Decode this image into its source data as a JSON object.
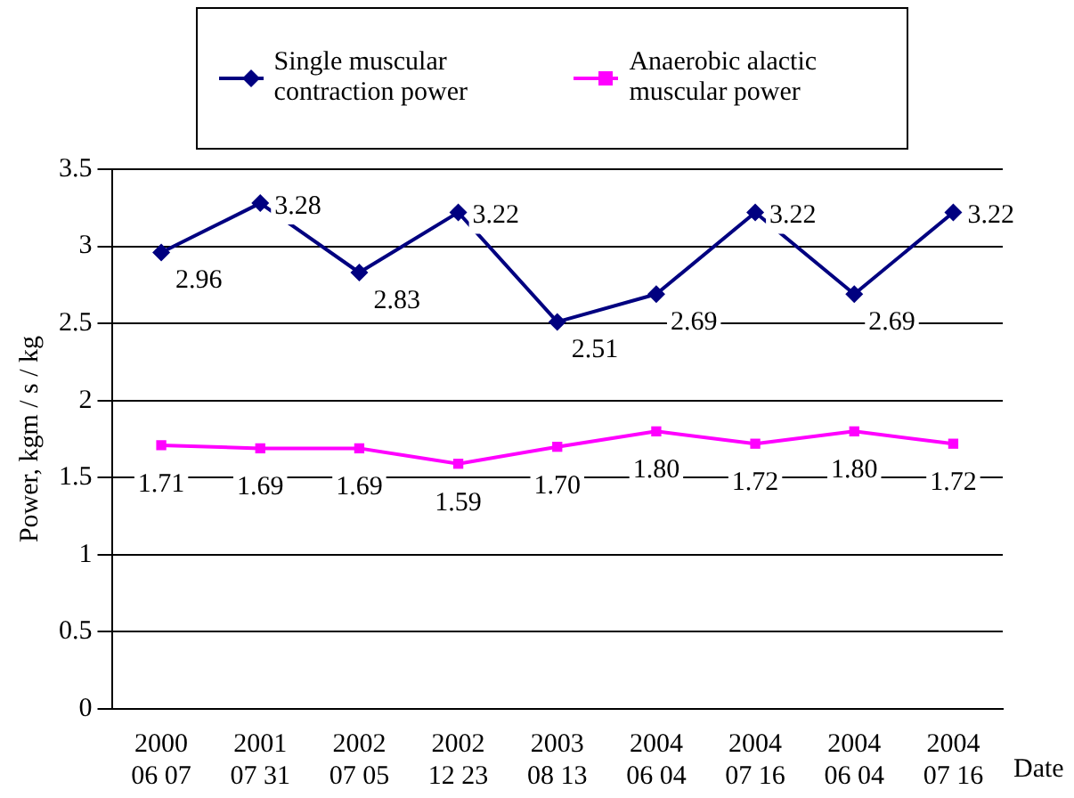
{
  "chart_data": {
    "type": "line",
    "xlabel": "Date",
    "ylabel": "Power, kgm / s / kg",
    "categories": [
      "2000\n06 07",
      "2001\n07 31",
      "2002\n07 05",
      "2002\n12 23",
      "2003\n08 13",
      "2004\n06 04",
      "2004\n07 16",
      "2004\n06 04",
      "2004\n07 16"
    ],
    "series": [
      {
        "name": "Single muscular contraction power",
        "color": "#000080",
        "marker": "diamond",
        "values": [
          2.96,
          3.28,
          2.83,
          3.22,
          2.51,
          2.69,
          3.22,
          2.69,
          3.22
        ],
        "value_labels": [
          "2.96",
          "3.28",
          "2.83",
          "3.22",
          "2.51",
          "2.69",
          "3.22",
          "2.69",
          "3.22"
        ]
      },
      {
        "name": "Anaerobic alactic muscular power",
        "color": "#ff00ff",
        "marker": "square",
        "values": [
          1.71,
          1.69,
          1.69,
          1.59,
          1.7,
          1.8,
          1.72,
          1.8,
          1.72
        ],
        "value_labels": [
          "1.71",
          "1.69",
          "1.69",
          "1.59",
          "1.70",
          "1.80",
          "1.72",
          "1.80",
          "1.72"
        ]
      }
    ],
    "ylim": [
      0,
      3.5
    ],
    "yticks": [
      0,
      0.5,
      1,
      1.5,
      2,
      2.5,
      3,
      3.5
    ],
    "grid": "y",
    "legend": "top"
  }
}
